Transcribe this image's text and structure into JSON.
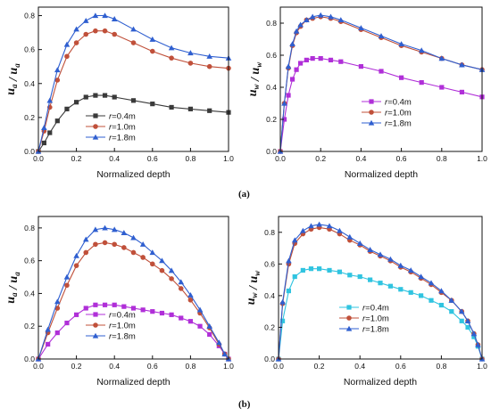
{
  "panel_labels": [
    "(a)",
    "(b)"
  ],
  "chart_data": [
    {
      "id": "a-left",
      "type": "line",
      "xlabel": "Normalized depth",
      "ylabel": {
        "sym": "u",
        "sub": "a",
        "sup": "0"
      },
      "xlim": [
        0,
        1
      ],
      "ylim": [
        0,
        0.85
      ],
      "xticks": [
        "0.0",
        "0.2",
        "0.4",
        "0.6",
        "0.8",
        "1.0"
      ],
      "xtick_values": [
        0,
        0.2,
        0.4,
        0.6,
        0.8,
        1.0
      ],
      "yticks": [
        "0.0",
        "0.2",
        "0.4",
        "0.6",
        "0.8"
      ],
      "ytick_values": [
        0,
        0.2,
        0.4,
        0.6,
        0.8
      ],
      "legend_position": "bottom-center",
      "series": [
        {
          "name": "r=0.4m",
          "r": "0.4",
          "marker": "square",
          "color": "#3a3a3a",
          "x": [
            0,
            0.03,
            0.06,
            0.1,
            0.15,
            0.2,
            0.25,
            0.3,
            0.35,
            0.4,
            0.5,
            0.6,
            0.7,
            0.8,
            0.9,
            1.0
          ],
          "y": [
            0,
            0.05,
            0.11,
            0.18,
            0.25,
            0.29,
            0.32,
            0.33,
            0.33,
            0.32,
            0.3,
            0.28,
            0.26,
            0.25,
            0.24,
            0.23
          ]
        },
        {
          "name": "r=1.0m",
          "r": "1.0",
          "marker": "circle",
          "color": "#c0503a",
          "x": [
            0,
            0.03,
            0.06,
            0.1,
            0.15,
            0.2,
            0.25,
            0.3,
            0.35,
            0.4,
            0.5,
            0.6,
            0.7,
            0.8,
            0.9,
            1.0
          ],
          "y": [
            0,
            0.12,
            0.26,
            0.42,
            0.56,
            0.64,
            0.69,
            0.71,
            0.71,
            0.69,
            0.64,
            0.59,
            0.55,
            0.52,
            0.5,
            0.49
          ]
        },
        {
          "name": "r=1.8m",
          "r": "1.8",
          "marker": "triangle",
          "color": "#2f5fd0",
          "x": [
            0,
            0.03,
            0.06,
            0.1,
            0.15,
            0.2,
            0.25,
            0.3,
            0.35,
            0.4,
            0.5,
            0.6,
            0.7,
            0.8,
            0.9,
            1.0
          ],
          "y": [
            0,
            0.14,
            0.3,
            0.48,
            0.63,
            0.72,
            0.77,
            0.8,
            0.8,
            0.78,
            0.72,
            0.66,
            0.61,
            0.58,
            0.56,
            0.55
          ]
        }
      ]
    },
    {
      "id": "a-right",
      "type": "line",
      "xlabel": "Normalized depth",
      "ylabel": {
        "sym": "u",
        "sub": "w",
        "sup": "0"
      },
      "xlim": [
        0,
        1
      ],
      "ylim": [
        0,
        0.9
      ],
      "xticks": [
        "0.0",
        "0.2",
        "0.4",
        "0.6",
        "0.8",
        "1.0"
      ],
      "xtick_values": [
        0,
        0.2,
        0.4,
        0.6,
        0.8,
        1.0
      ],
      "yticks": [
        "0.0",
        "0.2",
        "0.4",
        "0.6",
        "0.8"
      ],
      "ytick_values": [
        0,
        0.2,
        0.4,
        0.6,
        0.8
      ],
      "legend_position": "center-right",
      "series": [
        {
          "name": "r=0.4m",
          "r": "0.4",
          "marker": "square",
          "color": "#b02fd8",
          "x": [
            0,
            0.02,
            0.04,
            0.06,
            0.08,
            0.1,
            0.13,
            0.16,
            0.2,
            0.25,
            0.3,
            0.4,
            0.5,
            0.6,
            0.7,
            0.8,
            0.9,
            1.0
          ],
          "y": [
            0,
            0.2,
            0.35,
            0.45,
            0.51,
            0.55,
            0.57,
            0.58,
            0.58,
            0.57,
            0.56,
            0.53,
            0.5,
            0.46,
            0.43,
            0.4,
            0.37,
            0.34
          ]
        },
        {
          "name": "r=1.0m",
          "r": "1.0",
          "marker": "circle",
          "color": "#c0503a",
          "x": [
            0,
            0.02,
            0.04,
            0.06,
            0.08,
            0.1,
            0.13,
            0.16,
            0.2,
            0.25,
            0.3,
            0.4,
            0.5,
            0.6,
            0.7,
            0.8,
            0.9,
            1.0
          ],
          "y": [
            0,
            0.3,
            0.52,
            0.66,
            0.74,
            0.78,
            0.82,
            0.83,
            0.84,
            0.83,
            0.81,
            0.76,
            0.71,
            0.66,
            0.62,
            0.58,
            0.54,
            0.51
          ]
        },
        {
          "name": "r=1.8m",
          "r": "1.8",
          "marker": "triangle",
          "color": "#2f5fd0",
          "x": [
            0,
            0.02,
            0.04,
            0.06,
            0.08,
            0.1,
            0.13,
            0.16,
            0.2,
            0.25,
            0.3,
            0.4,
            0.5,
            0.6,
            0.7,
            0.8,
            0.9,
            1.0
          ],
          "y": [
            0,
            0.3,
            0.53,
            0.67,
            0.75,
            0.79,
            0.82,
            0.84,
            0.85,
            0.84,
            0.82,
            0.77,
            0.72,
            0.67,
            0.63,
            0.58,
            0.54,
            0.51
          ]
        }
      ]
    },
    {
      "id": "b-left",
      "type": "line",
      "xlabel": "Normalized depth",
      "ylabel": {
        "sym": "u",
        "sub": "a",
        "sup": "0"
      },
      "xlim": [
        0,
        1
      ],
      "ylim": [
        0,
        0.87
      ],
      "xticks": [
        "0.0",
        "0.2",
        "0.4",
        "0.6",
        "0.8",
        "1.0"
      ],
      "xtick_values": [
        0,
        0.2,
        0.4,
        0.6,
        0.8,
        1.0
      ],
      "yticks": [
        "0.0",
        "0.2",
        "0.4",
        "0.6",
        "0.8"
      ],
      "ytick_values": [
        0,
        0.2,
        0.4,
        0.6,
        0.8
      ],
      "legend_position": "bottom-center",
      "series": [
        {
          "name": "r=0.4m",
          "r": "0.4",
          "marker": "square",
          "color": "#b02fd8",
          "x": [
            0,
            0.05,
            0.1,
            0.15,
            0.2,
            0.25,
            0.3,
            0.35,
            0.4,
            0.45,
            0.5,
            0.55,
            0.6,
            0.65,
            0.7,
            0.75,
            0.8,
            0.85,
            0.9,
            0.95,
            0.98,
            1.0
          ],
          "y": [
            0,
            0.09,
            0.16,
            0.22,
            0.27,
            0.31,
            0.33,
            0.33,
            0.33,
            0.32,
            0.31,
            0.3,
            0.29,
            0.28,
            0.27,
            0.25,
            0.23,
            0.2,
            0.15,
            0.08,
            0.03,
            0
          ]
        },
        {
          "name": "r=1.0m",
          "r": "1.0",
          "marker": "circle",
          "color": "#c0503a",
          "x": [
            0,
            0.05,
            0.1,
            0.15,
            0.2,
            0.25,
            0.3,
            0.35,
            0.4,
            0.45,
            0.5,
            0.55,
            0.6,
            0.65,
            0.7,
            0.75,
            0.8,
            0.85,
            0.9,
            0.95,
            0.98,
            1.0
          ],
          "y": [
            0,
            0.16,
            0.31,
            0.45,
            0.57,
            0.65,
            0.7,
            0.71,
            0.7,
            0.68,
            0.65,
            0.62,
            0.58,
            0.54,
            0.49,
            0.43,
            0.36,
            0.28,
            0.19,
            0.09,
            0.03,
            0
          ]
        },
        {
          "name": "r=1.8m",
          "r": "1.8",
          "marker": "triangle",
          "color": "#2f5fd0",
          "x": [
            0,
            0.05,
            0.1,
            0.15,
            0.2,
            0.25,
            0.3,
            0.35,
            0.4,
            0.45,
            0.5,
            0.55,
            0.6,
            0.65,
            0.7,
            0.75,
            0.8,
            0.85,
            0.9,
            0.95,
            0.98,
            1.0
          ],
          "y": [
            0,
            0.18,
            0.35,
            0.5,
            0.63,
            0.73,
            0.79,
            0.8,
            0.79,
            0.77,
            0.74,
            0.7,
            0.65,
            0.6,
            0.54,
            0.47,
            0.39,
            0.3,
            0.2,
            0.1,
            0.03,
            0
          ]
        }
      ]
    },
    {
      "id": "b-right",
      "type": "line",
      "xlabel": "Normalized depth",
      "ylabel": {
        "sym": "u",
        "sub": "w",
        "sup": "0"
      },
      "xlim": [
        0,
        1
      ],
      "ylim": [
        0,
        0.9
      ],
      "xticks": [
        "0.0",
        "0.2",
        "0.4",
        "0.6",
        "0.8",
        "1.0"
      ],
      "xtick_values": [
        0,
        0.2,
        0.4,
        0.6,
        0.8,
        1.0
      ],
      "yticks": [
        "0.0",
        "0.2",
        "0.4",
        "0.6",
        "0.8"
      ],
      "ytick_values": [
        0,
        0.2,
        0.4,
        0.6,
        0.8
      ],
      "legend_position": "center",
      "series": [
        {
          "name": "r=0.4m",
          "r": "0.4",
          "marker": "square",
          "color": "#30c4e0",
          "x": [
            0,
            0.02,
            0.05,
            0.08,
            0.12,
            0.16,
            0.2,
            0.25,
            0.3,
            0.35,
            0.4,
            0.45,
            0.5,
            0.55,
            0.6,
            0.65,
            0.7,
            0.75,
            0.8,
            0.85,
            0.9,
            0.93,
            0.96,
            0.98,
            1.0
          ],
          "y": [
            0,
            0.24,
            0.43,
            0.52,
            0.56,
            0.57,
            0.57,
            0.56,
            0.55,
            0.53,
            0.52,
            0.5,
            0.48,
            0.46,
            0.44,
            0.42,
            0.4,
            0.37,
            0.34,
            0.3,
            0.24,
            0.2,
            0.14,
            0.08,
            0
          ]
        },
        {
          "name": "r=1.0m",
          "r": "1.0",
          "marker": "circle",
          "color": "#c0503a",
          "x": [
            0,
            0.02,
            0.05,
            0.08,
            0.12,
            0.16,
            0.2,
            0.25,
            0.3,
            0.35,
            0.4,
            0.45,
            0.5,
            0.55,
            0.6,
            0.65,
            0.7,
            0.75,
            0.8,
            0.85,
            0.9,
            0.93,
            0.96,
            0.98,
            1.0
          ],
          "y": [
            0,
            0.35,
            0.6,
            0.73,
            0.79,
            0.82,
            0.83,
            0.82,
            0.79,
            0.75,
            0.72,
            0.68,
            0.65,
            0.62,
            0.58,
            0.55,
            0.51,
            0.47,
            0.42,
            0.37,
            0.3,
            0.24,
            0.16,
            0.09,
            0
          ]
        },
        {
          "name": "r=1.8m",
          "r": "1.8",
          "marker": "triangle",
          "color": "#2f5fd0",
          "x": [
            0,
            0.02,
            0.05,
            0.08,
            0.12,
            0.16,
            0.2,
            0.25,
            0.3,
            0.35,
            0.4,
            0.45,
            0.5,
            0.55,
            0.6,
            0.65,
            0.7,
            0.75,
            0.8,
            0.85,
            0.9,
            0.93,
            0.96,
            0.98,
            1.0
          ],
          "y": [
            0,
            0.36,
            0.62,
            0.75,
            0.81,
            0.84,
            0.85,
            0.84,
            0.81,
            0.77,
            0.73,
            0.69,
            0.66,
            0.63,
            0.59,
            0.56,
            0.52,
            0.48,
            0.43,
            0.37,
            0.3,
            0.24,
            0.16,
            0.09,
            0
          ]
        }
      ]
    }
  ]
}
